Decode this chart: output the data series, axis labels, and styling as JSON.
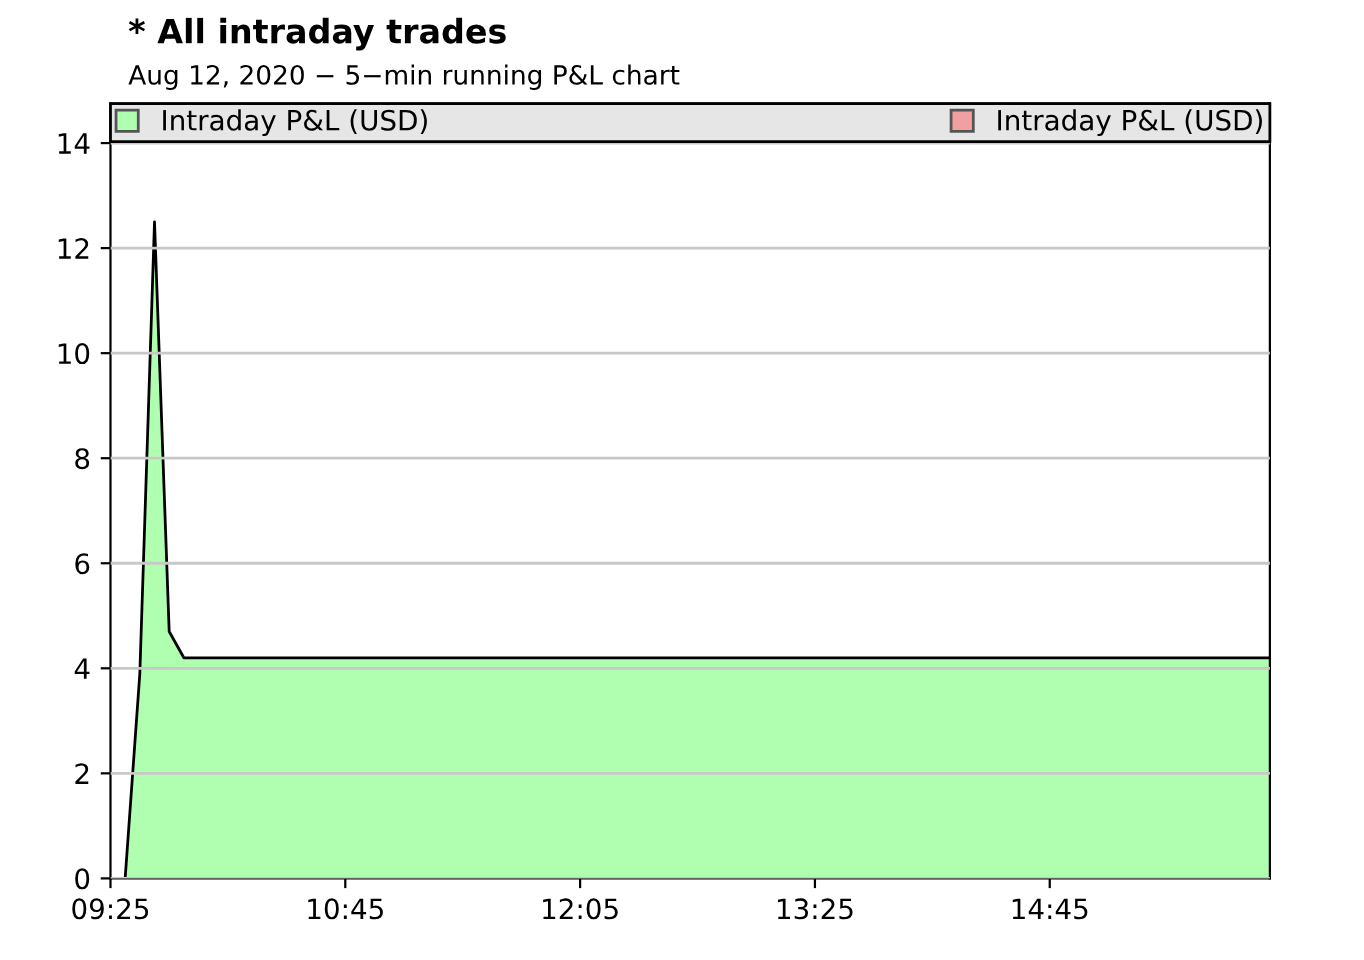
{
  "chart_data": {
    "type": "area",
    "title": "* All intraday trades",
    "subtitle": "Aug 12, 2020 − 5−min running P&L chart",
    "x": [
      9.5,
      9.5833,
      9.6667,
      9.75,
      9.8333,
      16.0
    ],
    "series": [
      {
        "name": "Intraday P&L (USD)",
        "color": "#b0ffb0",
        "values": [
          0,
          3.9,
          12.5,
          4.7,
          4.2,
          4.2
        ]
      },
      {
        "name": "Intraday P&L (USD)",
        "color": "#f0a0a0",
        "values": [
          null,
          null,
          null,
          null,
          null,
          null
        ]
      }
    ],
    "xlim": [
      9.4167,
      16.0
    ],
    "xticks": [
      {
        "value": 9.4167,
        "label": "09:25"
      },
      {
        "value": 10.75,
        "label": "10:45"
      },
      {
        "value": 12.0833,
        "label": "12:05"
      },
      {
        "value": 13.4167,
        "label": "13:25"
      },
      {
        "value": 14.75,
        "label": "14:45"
      }
    ],
    "ylim": [
      0,
      14.75
    ],
    "yticks": [
      0,
      2,
      4,
      6,
      8,
      10,
      12,
      14
    ],
    "grid": "y",
    "legend": "top",
    "marker": "none",
    "line_style": "solid"
  }
}
